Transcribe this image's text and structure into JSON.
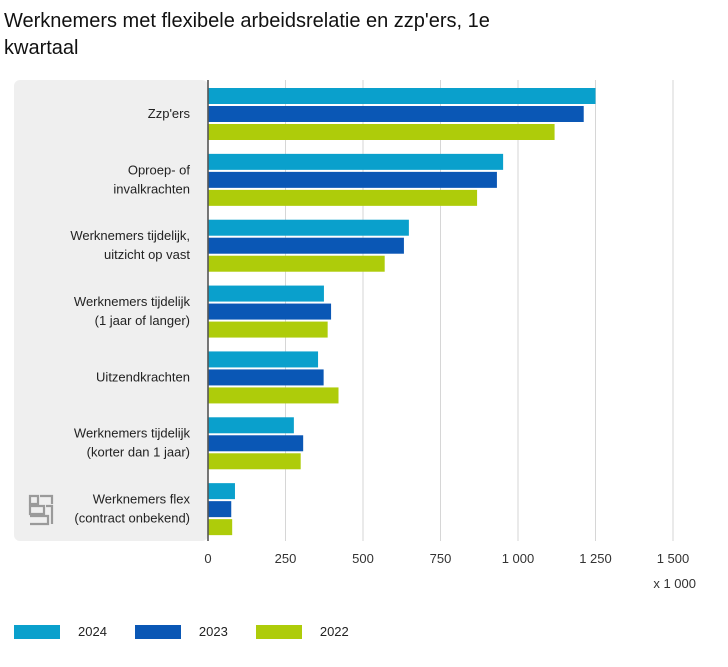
{
  "title": "Werknemers met flexibele arbeidsrelatie en zzp'ers, 1e kwartaal",
  "unit_label": "x 1 000",
  "colors": {
    "2024": "#0aa0cc",
    "2023": "#0a57b5",
    "2022": "#aecc0a",
    "panel": "#efefef",
    "grid": "#d6d6d6",
    "axis": "#555555"
  },
  "chart_data": {
    "type": "bar",
    "orientation": "horizontal",
    "categories": [
      "Zzp'ers",
      "Oproep- of invalkrachten",
      "Werknemers tijdelijk, uitzicht op vast",
      "Werknemers tijdelijk (1 jaar of langer)",
      "Uitzendkrachten",
      "Werknemers tijdelijk (korter dan 1 jaar)",
      "Werknemers flex (contract onbekend)"
    ],
    "category_lines": [
      [
        "Zzp'ers"
      ],
      [
        "Oproep- of",
        "invalkrachten"
      ],
      [
        "Werknemers tijdelijk,",
        "uitzicht op vast"
      ],
      [
        "Werknemers tijdelijk",
        "(1 jaar of langer)"
      ],
      [
        "Uitzendkrachten"
      ],
      [
        "Werknemers tijdelijk",
        "(korter dan 1 jaar)"
      ],
      [
        "Werknemers flex",
        "(contract onbekend)"
      ]
    ],
    "series": [
      {
        "name": "2024",
        "values": [
          1250,
          952,
          648,
          374,
          355,
          277,
          87
        ]
      },
      {
        "name": "2023",
        "values": [
          1212,
          932,
          632,
          397,
          373,
          307,
          75
        ]
      },
      {
        "name": "2022",
        "values": [
          1118,
          868,
          570,
          386,
          421,
          299,
          78
        ]
      }
    ],
    "xlim": [
      0,
      1500
    ],
    "xticks": [
      0,
      250,
      500,
      750,
      1000,
      1250,
      1500
    ],
    "xtick_labels": [
      "0",
      "250",
      "500",
      "750",
      "1 000",
      "1 250",
      "1 500"
    ],
    "grid": true,
    "legend_position": "bottom-left"
  },
  "logo": {
    "name": "cbs-logo",
    "text": "cbs"
  }
}
